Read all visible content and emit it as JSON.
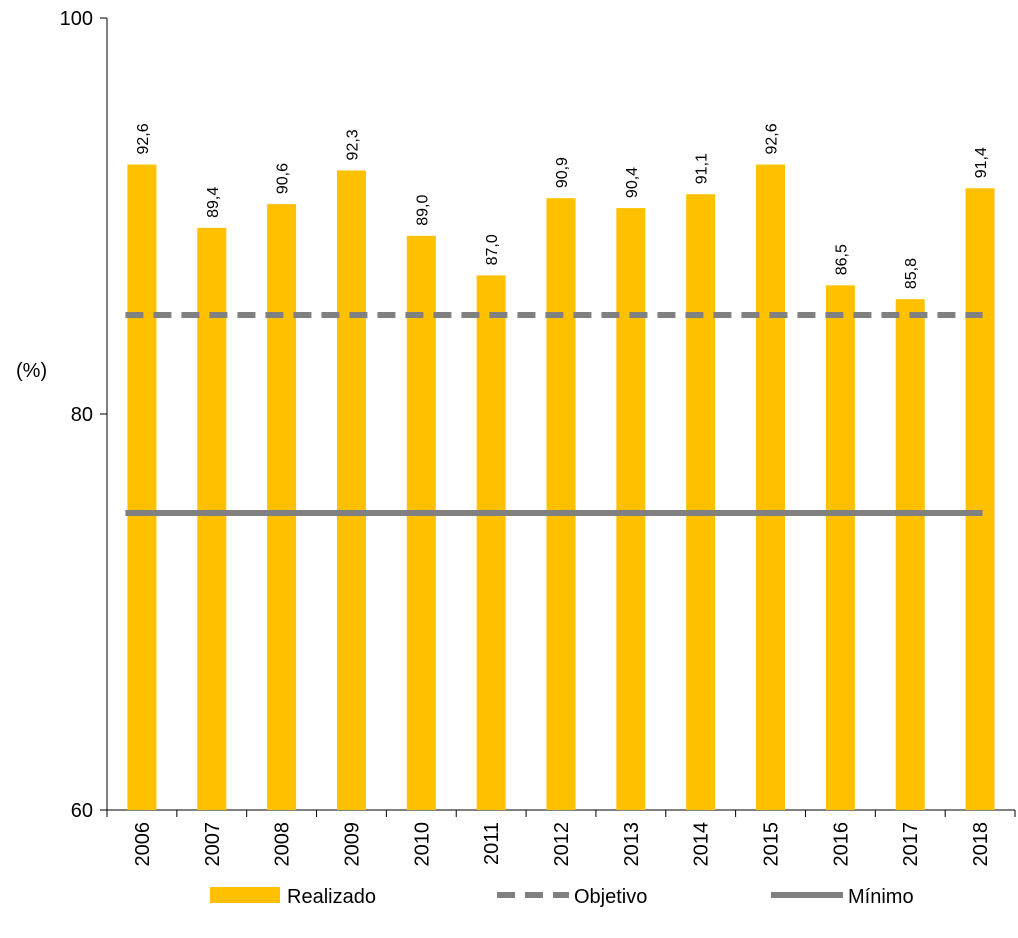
{
  "chart_data": {
    "type": "bar",
    "title": "",
    "xlabel": "",
    "ylabel": "(%)",
    "ylim": [
      60,
      100
    ],
    "yticks": [
      "60",
      "80",
      "100"
    ],
    "categories": [
      "2006",
      "2007",
      "2008",
      "2009",
      "2010",
      "2011",
      "2012",
      "2013",
      "2014",
      "2015",
      "2016",
      "2017",
      "2018"
    ],
    "series": [
      {
        "name": "Realizado",
        "kind": "bar",
        "color": "#FFC000",
        "values": [
          92.6,
          89.4,
          90.6,
          92.3,
          89.0,
          87.0,
          90.9,
          90.4,
          91.1,
          92.6,
          86.5,
          85.8,
          91.4
        ],
        "labels": [
          "92,6",
          "89,4",
          "90,6",
          "92,3",
          "89,0",
          "87,0",
          "90,9",
          "90,4",
          "91,1",
          "92,6",
          "86,5",
          "85,8",
          "91,4"
        ]
      },
      {
        "name": "Objetivo",
        "kind": "dashed-line",
        "color": "#808080",
        "value": 85.0
      },
      {
        "name": "Mínimo",
        "kind": "line",
        "color": "#808080",
        "value": 75.0
      }
    ],
    "grid": false,
    "legend_position": "bottom"
  }
}
